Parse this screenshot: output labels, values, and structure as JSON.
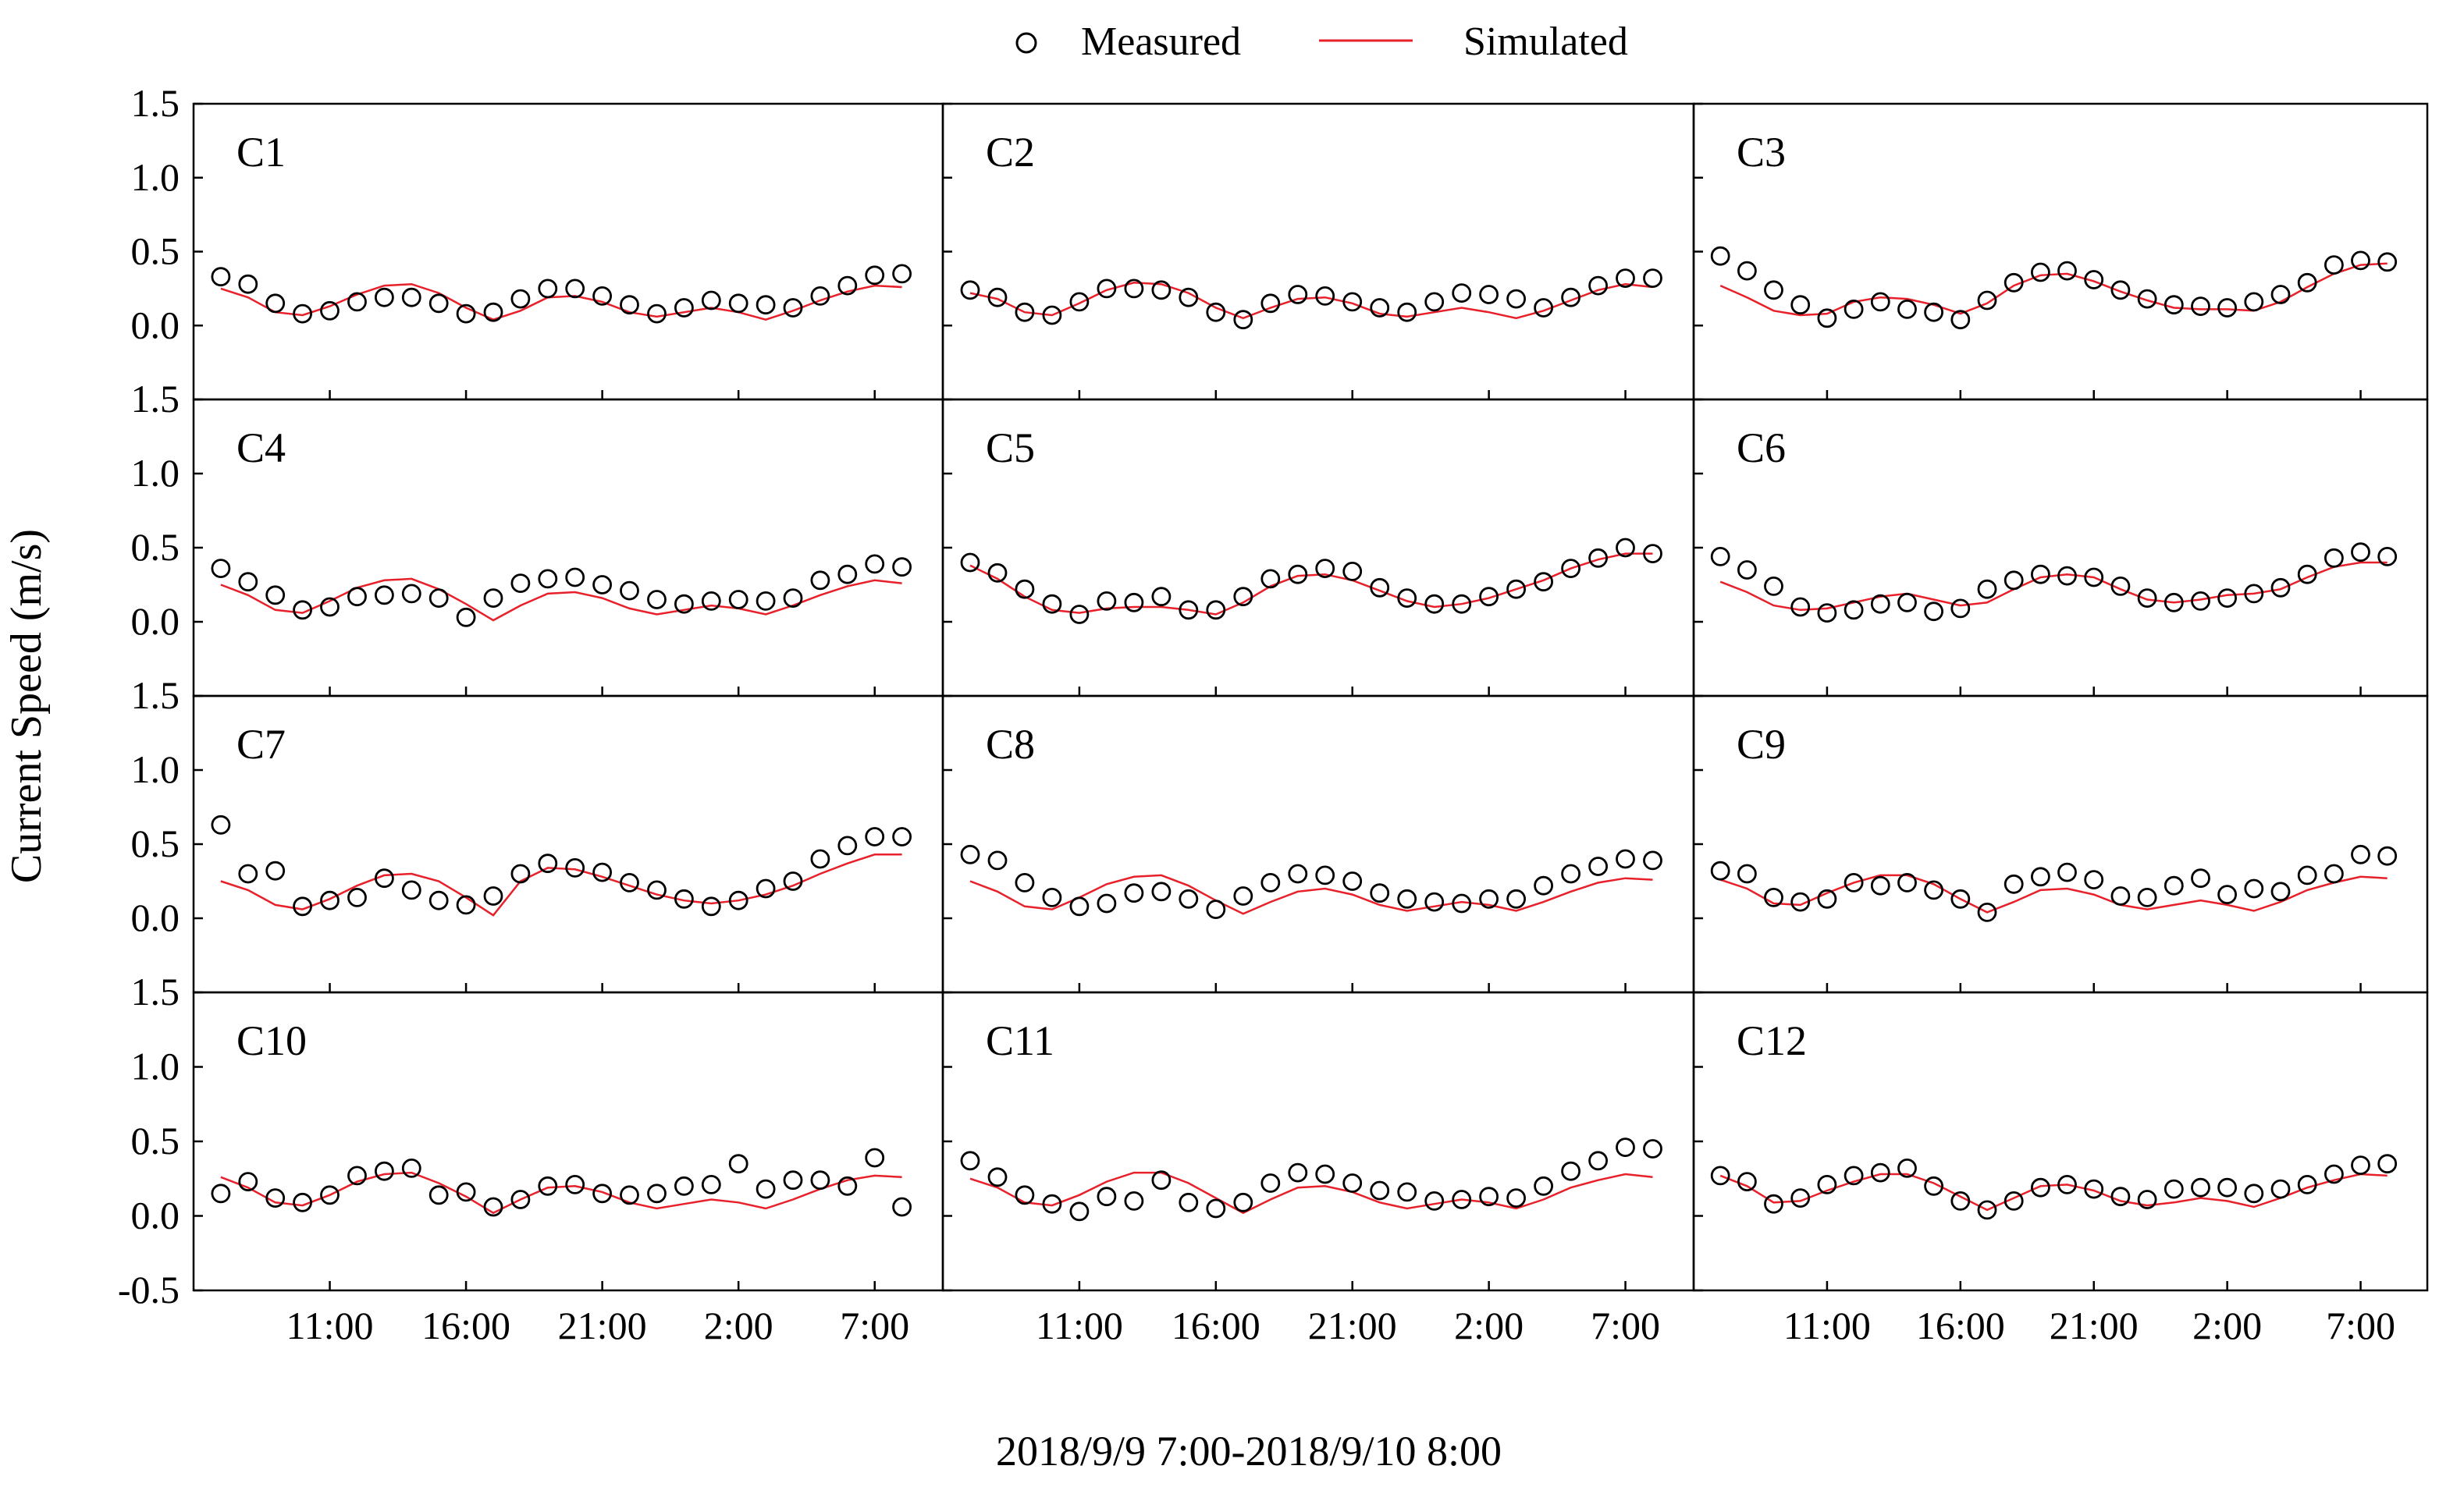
{
  "chart_data": {
    "type": "scatter",
    "layout": "4x3 panel grid",
    "ylabel": "Current Speed (m/s)",
    "xlabel": "2018/9/9 7:00-2018/9/10 8:00",
    "ylim": [
      -0.5,
      1.5
    ],
    "xlim": [
      6,
      33.5
    ],
    "x_hours": [
      7,
      8,
      9,
      10,
      11,
      12,
      13,
      14,
      15,
      16,
      17,
      18,
      19,
      20,
      21,
      22,
      23,
      24,
      25,
      26,
      27,
      28,
      29,
      30,
      31,
      32
    ],
    "legend": {
      "position": "top-center",
      "measured": "Measured",
      "simulated": "Simulated"
    },
    "colors": {
      "measured": "#000000",
      "simulated": "#e8202a"
    },
    "y_ticks": [
      {
        "v": 1.5,
        "label": "1.5"
      },
      {
        "v": 1.0,
        "label": "1.0"
      },
      {
        "v": 0.5,
        "label": "0.5"
      },
      {
        "v": 0.0,
        "label": "0.0"
      },
      {
        "v": -0.5,
        "label": "-0.5"
      }
    ],
    "x_ticks": [
      {
        "v": 11,
        "label": "11:00"
      },
      {
        "v": 16,
        "label": "16:00"
      },
      {
        "v": 21,
        "label": "21:00"
      },
      {
        "v": 26,
        "label": "2:00"
      },
      {
        "v": 31,
        "label": "7:00"
      }
    ],
    "panels": [
      {
        "name": "C1",
        "measured": [
          0.33,
          0.28,
          0.15,
          0.08,
          0.1,
          0.16,
          0.19,
          0.19,
          0.15,
          0.08,
          0.09,
          0.18,
          0.25,
          0.25,
          0.2,
          0.14,
          0.08,
          0.12,
          0.17,
          0.15,
          0.14,
          0.12,
          0.2,
          0.27,
          0.34,
          0.35
        ],
        "simulated": [
          0.25,
          0.19,
          0.09,
          0.07,
          0.13,
          0.21,
          0.27,
          0.28,
          0.22,
          0.12,
          0.04,
          0.1,
          0.19,
          0.2,
          0.16,
          0.09,
          0.06,
          0.09,
          0.12,
          0.09,
          0.04,
          0.1,
          0.17,
          0.23,
          0.27,
          0.26
        ]
      },
      {
        "name": "C2",
        "measured": [
          0.24,
          0.19,
          0.09,
          0.07,
          0.16,
          0.25,
          0.25,
          0.24,
          0.19,
          0.09,
          0.04,
          0.15,
          0.21,
          0.2,
          0.16,
          0.12,
          0.09,
          0.16,
          0.22,
          0.21,
          0.18,
          0.12,
          0.19,
          0.27,
          0.32,
          0.32
        ],
        "simulated": [
          0.22,
          0.18,
          0.09,
          0.07,
          0.15,
          0.24,
          0.29,
          0.28,
          0.22,
          0.12,
          0.05,
          0.12,
          0.18,
          0.19,
          0.15,
          0.08,
          0.06,
          0.09,
          0.12,
          0.09,
          0.05,
          0.1,
          0.17,
          0.24,
          0.28,
          0.26
        ]
      },
      {
        "name": "C3",
        "measured": [
          0.47,
          0.37,
          0.24,
          0.14,
          0.05,
          0.11,
          0.16,
          0.11,
          0.09,
          0.04,
          0.17,
          0.29,
          0.36,
          0.37,
          0.31,
          0.24,
          0.18,
          0.14,
          0.13,
          0.12,
          0.16,
          0.21,
          0.29,
          0.41,
          0.44,
          0.43
        ],
        "simulated": [
          0.27,
          0.19,
          0.1,
          0.07,
          0.08,
          0.16,
          0.19,
          0.18,
          0.14,
          0.08,
          0.15,
          0.27,
          0.34,
          0.35,
          0.3,
          0.23,
          0.17,
          0.12,
          0.11,
          0.11,
          0.1,
          0.16,
          0.26,
          0.35,
          0.41,
          0.42
        ]
      },
      {
        "name": "C4",
        "measured": [
          0.36,
          0.27,
          0.18,
          0.08,
          0.1,
          0.17,
          0.18,
          0.19,
          0.16,
          0.03,
          0.16,
          0.26,
          0.29,
          0.3,
          0.25,
          0.21,
          0.15,
          0.12,
          0.14,
          0.15,
          0.14,
          0.16,
          0.28,
          0.32,
          0.39,
          0.37
        ],
        "simulated": [
          0.25,
          0.18,
          0.08,
          0.06,
          0.14,
          0.23,
          0.28,
          0.29,
          0.22,
          0.12,
          0.01,
          0.11,
          0.19,
          0.2,
          0.16,
          0.09,
          0.05,
          0.08,
          0.11,
          0.09,
          0.05,
          0.11,
          0.18,
          0.24,
          0.28,
          0.26
        ]
      },
      {
        "name": "C5",
        "measured": [
          0.4,
          0.33,
          0.22,
          0.12,
          0.05,
          0.14,
          0.13,
          0.17,
          0.08,
          0.08,
          0.17,
          0.29,
          0.32,
          0.36,
          0.34,
          0.23,
          0.16,
          0.12,
          0.12,
          0.17,
          0.22,
          0.27,
          0.36,
          0.43,
          0.5,
          0.46
        ],
        "simulated": [
          0.38,
          0.29,
          0.17,
          0.08,
          0.06,
          0.09,
          0.1,
          0.1,
          0.08,
          0.05,
          0.13,
          0.24,
          0.31,
          0.32,
          0.28,
          0.21,
          0.14,
          0.1,
          0.12,
          0.16,
          0.22,
          0.28,
          0.36,
          0.42,
          0.46,
          0.46
        ]
      },
      {
        "name": "C6",
        "measured": [
          0.44,
          0.35,
          0.24,
          0.1,
          0.06,
          0.08,
          0.12,
          0.13,
          0.07,
          0.09,
          0.22,
          0.28,
          0.32,
          0.31,
          0.3,
          0.24,
          0.16,
          0.13,
          0.14,
          0.16,
          0.19,
          0.23,
          0.32,
          0.43,
          0.47,
          0.44
        ],
        "simulated": [
          0.27,
          0.2,
          0.11,
          0.08,
          0.09,
          0.13,
          0.17,
          0.19,
          0.15,
          0.11,
          0.13,
          0.22,
          0.3,
          0.32,
          0.3,
          0.22,
          0.15,
          0.13,
          0.15,
          0.18,
          0.19,
          0.22,
          0.3,
          0.37,
          0.4,
          0.4
        ]
      },
      {
        "name": "C7",
        "measured": [
          0.63,
          0.3,
          0.32,
          0.08,
          0.12,
          0.14,
          0.27,
          0.19,
          0.12,
          0.09,
          0.15,
          0.3,
          0.37,
          0.34,
          0.31,
          0.24,
          0.19,
          0.13,
          0.08,
          0.12,
          0.2,
          0.25,
          0.4,
          0.49,
          0.55,
          0.55
        ],
        "simulated": [
          0.25,
          0.19,
          0.09,
          0.06,
          0.13,
          0.22,
          0.29,
          0.3,
          0.25,
          0.14,
          0.02,
          0.25,
          0.34,
          0.33,
          0.28,
          0.22,
          0.16,
          0.12,
          0.1,
          0.12,
          0.16,
          0.22,
          0.3,
          0.37,
          0.43,
          0.43
        ]
      },
      {
        "name": "C8",
        "measured": [
          0.43,
          0.39,
          0.24,
          0.14,
          0.08,
          0.1,
          0.17,
          0.18,
          0.13,
          0.06,
          0.15,
          0.24,
          0.3,
          0.29,
          0.25,
          0.17,
          0.13,
          0.11,
          0.1,
          0.13,
          0.13,
          0.22,
          0.3,
          0.35,
          0.4,
          0.39
        ],
        "simulated": [
          0.25,
          0.18,
          0.08,
          0.06,
          0.14,
          0.23,
          0.28,
          0.29,
          0.22,
          0.12,
          0.03,
          0.11,
          0.18,
          0.2,
          0.16,
          0.09,
          0.05,
          0.08,
          0.11,
          0.09,
          0.05,
          0.11,
          0.18,
          0.24,
          0.27,
          0.26
        ]
      },
      {
        "name": "C9",
        "measured": [
          0.32,
          0.3,
          0.14,
          0.11,
          0.13,
          0.24,
          0.22,
          0.24,
          0.19,
          0.13,
          0.04,
          0.23,
          0.28,
          0.31,
          0.26,
          0.15,
          0.14,
          0.22,
          0.27,
          0.16,
          0.2,
          0.18,
          0.29,
          0.3,
          0.43,
          0.42
        ],
        "simulated": [
          0.26,
          0.2,
          0.1,
          0.09,
          0.17,
          0.24,
          0.29,
          0.29,
          0.23,
          0.13,
          0.04,
          0.11,
          0.19,
          0.2,
          0.16,
          0.09,
          0.06,
          0.09,
          0.12,
          0.09,
          0.05,
          0.11,
          0.19,
          0.24,
          0.28,
          0.27
        ]
      },
      {
        "name": "C10",
        "measured": [
          0.15,
          0.23,
          0.12,
          0.09,
          0.14,
          0.27,
          0.3,
          0.32,
          0.14,
          0.16,
          0.06,
          0.11,
          0.2,
          0.21,
          0.15,
          0.14,
          0.15,
          0.2,
          0.21,
          0.35,
          0.18,
          0.24,
          0.24,
          0.2,
          0.39,
          0.06
        ],
        "simulated": [
          0.26,
          0.19,
          0.09,
          0.07,
          0.14,
          0.23,
          0.28,
          0.29,
          0.22,
          0.13,
          0.02,
          0.11,
          0.19,
          0.2,
          0.16,
          0.09,
          0.05,
          0.08,
          0.11,
          0.09,
          0.05,
          0.11,
          0.18,
          0.24,
          0.27,
          0.26
        ]
      },
      {
        "name": "C11",
        "measured": [
          0.37,
          0.26,
          0.14,
          0.08,
          0.03,
          0.13,
          0.1,
          0.24,
          0.09,
          0.05,
          0.09,
          0.22,
          0.29,
          0.28,
          0.22,
          0.17,
          0.16,
          0.1,
          0.11,
          0.13,
          0.12,
          0.2,
          0.3,
          0.37,
          0.46,
          0.45
        ],
        "simulated": [
          0.25,
          0.19,
          0.09,
          0.07,
          0.14,
          0.23,
          0.29,
          0.29,
          0.22,
          0.12,
          0.02,
          0.11,
          0.19,
          0.2,
          0.16,
          0.09,
          0.05,
          0.08,
          0.11,
          0.09,
          0.05,
          0.11,
          0.19,
          0.24,
          0.28,
          0.26
        ]
      },
      {
        "name": "C12",
        "measured": [
          0.27,
          0.23,
          0.08,
          0.12,
          0.21,
          0.27,
          0.29,
          0.32,
          0.2,
          0.1,
          0.04,
          0.1,
          0.19,
          0.21,
          0.18,
          0.13,
          0.11,
          0.18,
          0.19,
          0.19,
          0.15,
          0.18,
          0.21,
          0.28,
          0.34,
          0.35
        ],
        "simulated": [
          0.27,
          0.2,
          0.09,
          0.1,
          0.17,
          0.23,
          0.28,
          0.28,
          0.22,
          0.13,
          0.04,
          0.12,
          0.2,
          0.21,
          0.17,
          0.1,
          0.07,
          0.09,
          0.12,
          0.1,
          0.06,
          0.12,
          0.19,
          0.24,
          0.28,
          0.27
        ]
      }
    ]
  }
}
